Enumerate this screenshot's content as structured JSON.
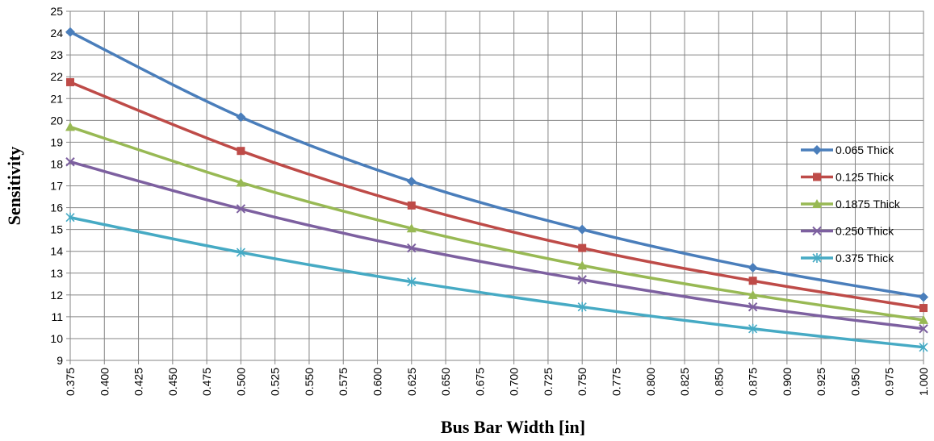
{
  "chart_data": {
    "type": "line",
    "xlabel": "Bus Bar Width [in]",
    "ylabel": "Sensitivity",
    "xlim": [
      0.375,
      1.0
    ],
    "ylim": [
      9,
      25
    ],
    "x_ticks": [
      "0.375",
      "0.400",
      "0.425",
      "0.450",
      "0.475",
      "0.500",
      "0.525",
      "0.550",
      "0.575",
      "0.600",
      "0.625",
      "0.650",
      "0.675",
      "0.700",
      "0.725",
      "0.750",
      "0.775",
      "0.800",
      "0.825",
      "0.850",
      "0.875",
      "0.900",
      "0.925",
      "0.950",
      "0.975",
      "1.000"
    ],
    "y_ticks": [
      "9",
      "10",
      "11",
      "12",
      "13",
      "14",
      "15",
      "16",
      "17",
      "18",
      "19",
      "20",
      "21",
      "22",
      "23",
      "24",
      "25"
    ],
    "grid": true,
    "legend_position": "right",
    "x": [
      0.375,
      0.5,
      0.625,
      0.75,
      0.875,
      1.0
    ],
    "series": [
      {
        "name": "0.065 Thick",
        "color": "#4a7ebb",
        "marker": "diamond",
        "values": [
          24.05,
          20.15,
          17.2,
          15.0,
          13.25,
          11.9
        ]
      },
      {
        "name": "0.125 Thick",
        "color": "#be4b48",
        "marker": "square",
        "values": [
          21.75,
          18.6,
          16.1,
          14.15,
          12.65,
          11.4
        ]
      },
      {
        "name": "0.1875 Thick",
        "color": "#98b954",
        "marker": "triangle",
        "values": [
          19.7,
          17.15,
          15.05,
          13.35,
          12.0,
          10.85
        ]
      },
      {
        "name": "0.250 Thick",
        "color": "#7d60a0",
        "marker": "x",
        "values": [
          18.1,
          15.95,
          14.15,
          12.7,
          11.45,
          10.45
        ]
      },
      {
        "name": "0.375 Thick",
        "color": "#46aac4",
        "marker": "star",
        "values": [
          15.55,
          13.95,
          12.6,
          11.45,
          10.45,
          9.6
        ]
      }
    ]
  }
}
